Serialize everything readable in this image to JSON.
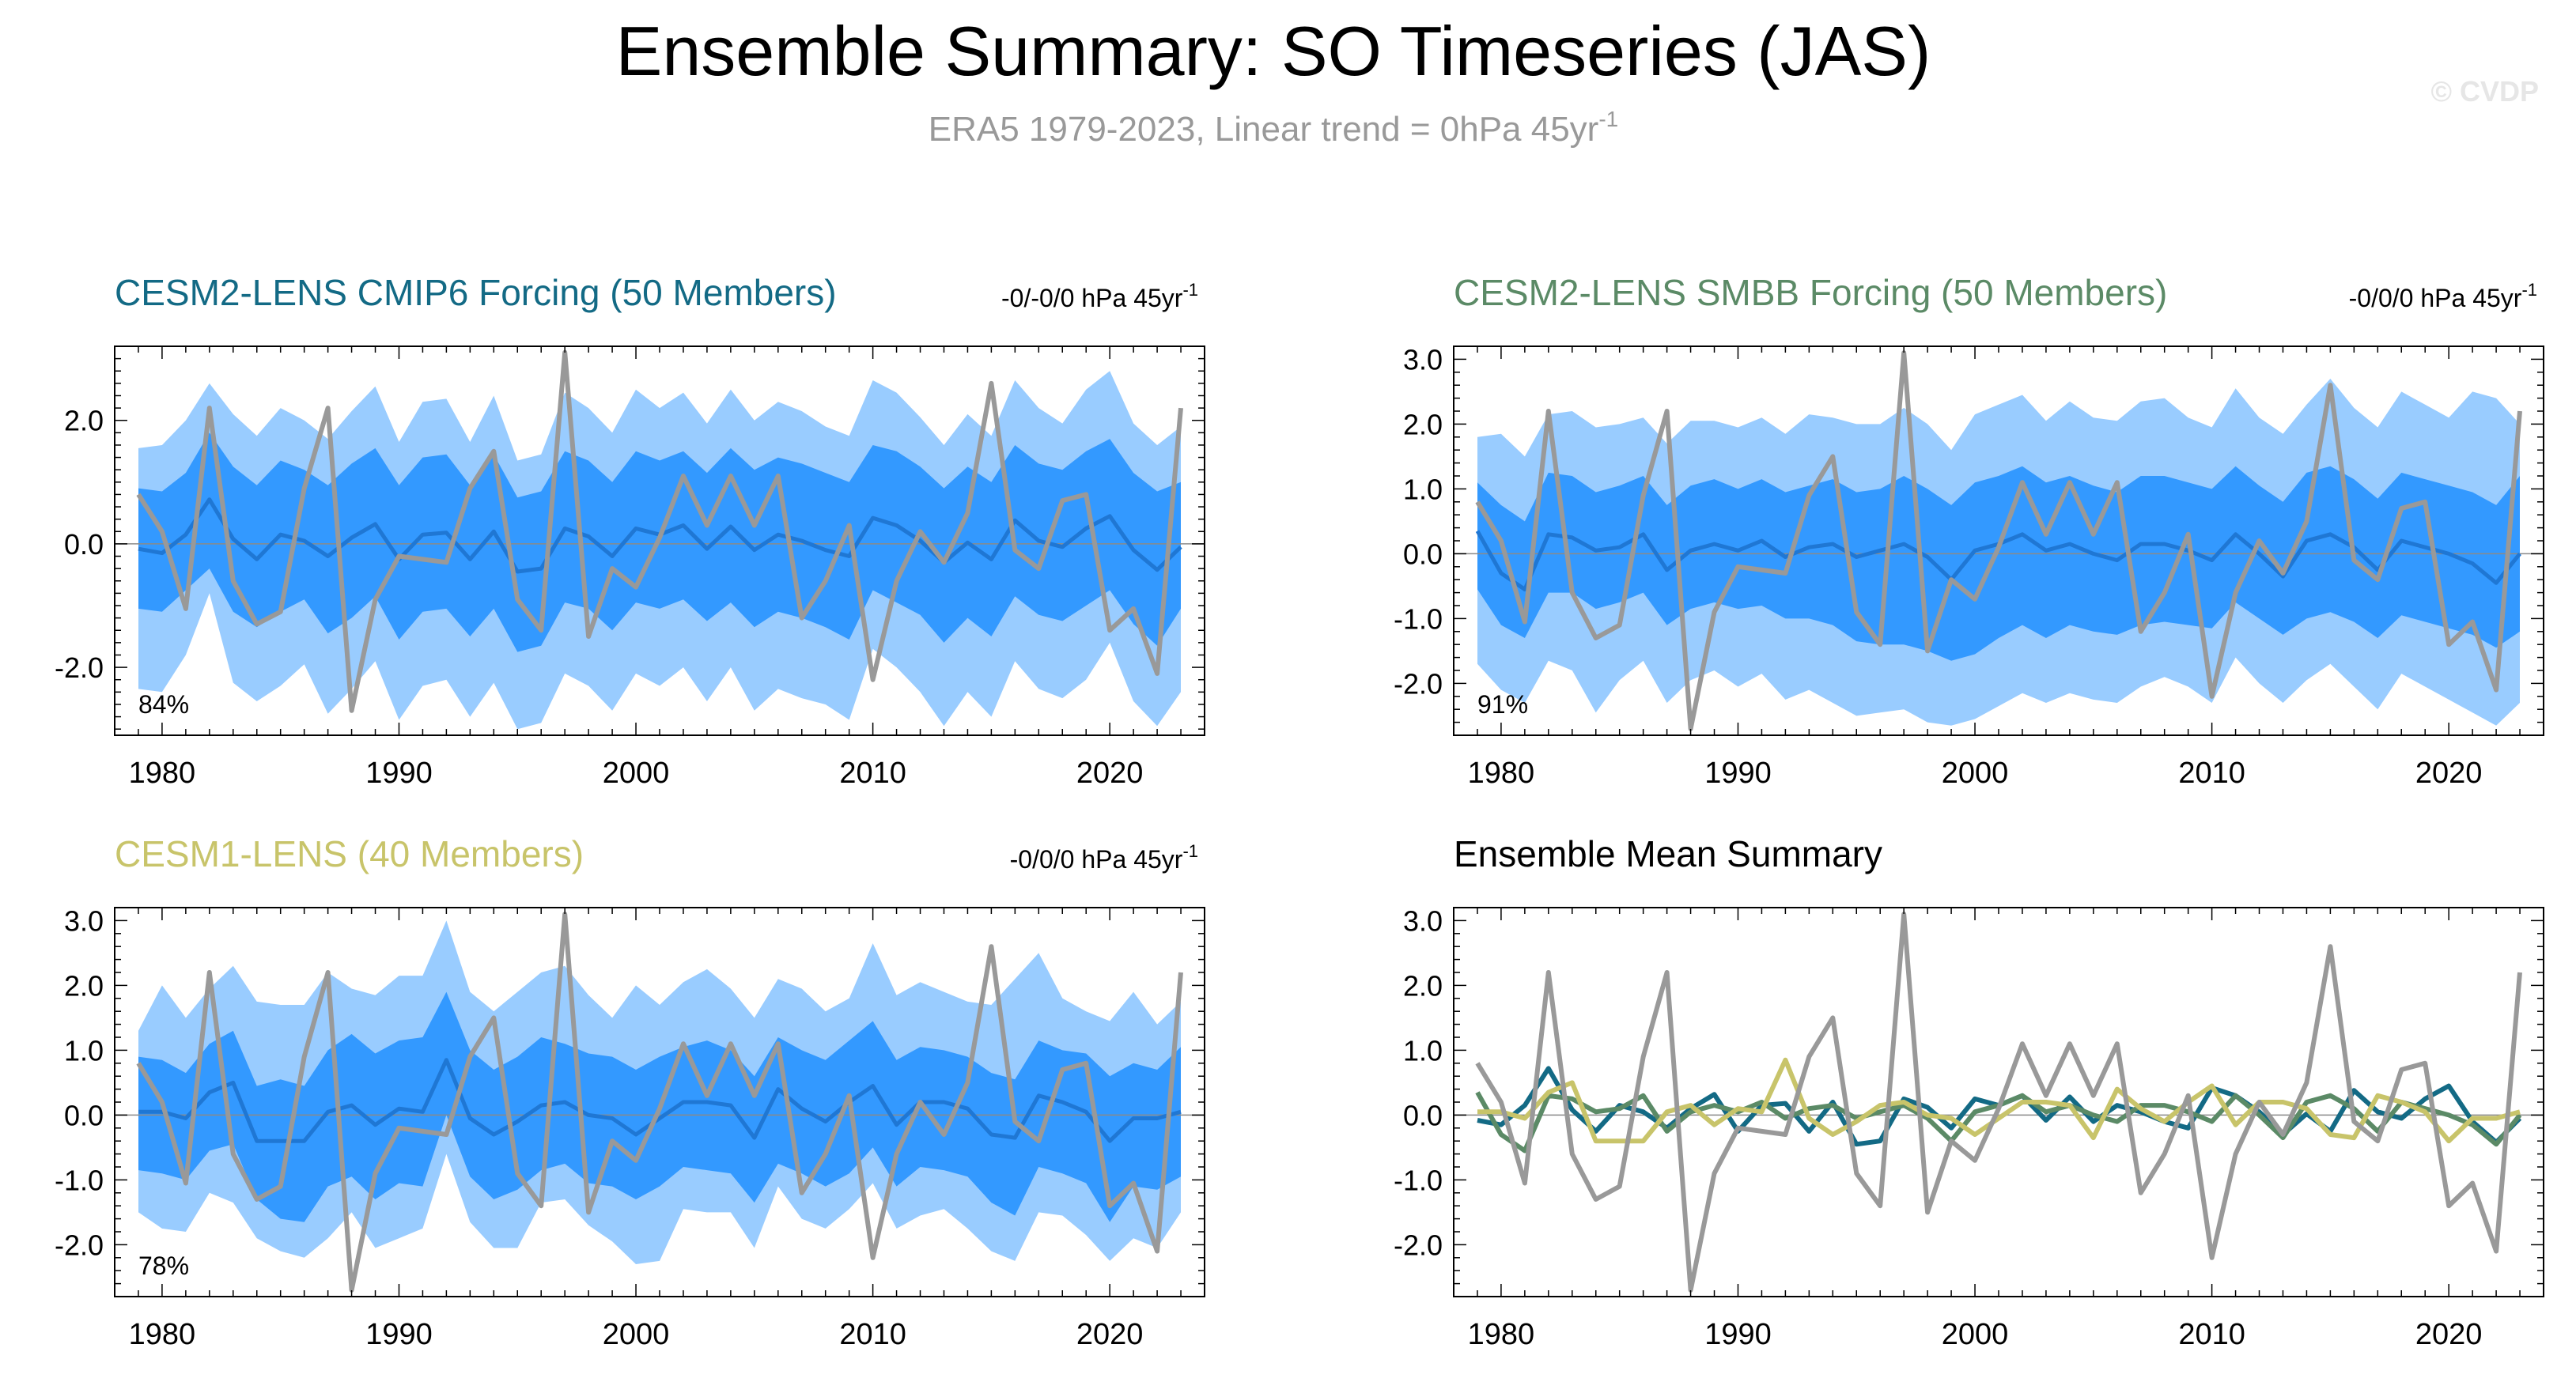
{
  "header": {
    "title": "Ensemble Summary: SO Timeseries (JAS)",
    "subtitle_main": "ERA5 1979-2023, Linear trend = 0hPa 45yr",
    "subtitle_sup": "-1",
    "watermark": "© CVDP"
  },
  "colors": {
    "outer_band": "#99ccff",
    "inner_band": "#3399ff",
    "ens_mean": "#1f77d4",
    "obs": "#999999",
    "cesm2_cmip6": "#136a85",
    "cesm2_smbb": "#5b8a66",
    "cesm1": "#c8c46a"
  },
  "chart_data": [
    {
      "type": "area",
      "id": "cesm2-cmip6",
      "title": "CESM2-LENS CMIP6 Forcing (50 Members)",
      "title_color": "#136a85",
      "trend_text": "-0/-0/0 hPa 45yr",
      "trend_sup": "-1",
      "percent": "84%",
      "xlim": [
        1978,
        2024
      ],
      "ylim": [
        -3.1,
        3.2
      ],
      "xticks": [
        1980,
        1990,
        2000,
        2010,
        2020
      ],
      "xtick_labels": [
        "1980",
        "1990",
        "2000",
        "2010",
        "2020"
      ],
      "yticks": [
        -2,
        0,
        2
      ],
      "ytick_labels": [
        "-2.0",
        "0.0",
        "2.0"
      ],
      "ens_mean": [
        -0.08,
        -0.15,
        0.15,
        0.72,
        0.08,
        -0.25,
        0.15,
        0.05,
        -0.2,
        0.1,
        0.32,
        -0.25,
        0.15,
        0.18,
        -0.25,
        0.2,
        -0.45,
        -0.4,
        0.25,
        0.12,
        -0.2,
        0.25,
        0.15,
        0.3,
        -0.08,
        0.28,
        -0.1,
        0.15,
        0.05,
        -0.1,
        -0.2,
        0.42,
        0.3,
        0.05,
        -0.3,
        0.02,
        -0.25,
        0.38,
        0.05,
        -0.05,
        0.25,
        0.45,
        -0.1,
        -0.42,
        -0.05
      ],
      "inner_low": [
        -1.05,
        -1.1,
        -0.75,
        -0.4,
        -1.1,
        -1.35,
        -1.1,
        -0.9,
        -1.45,
        -1.2,
        -0.85,
        -1.55,
        -1.1,
        -1.05,
        -1.5,
        -1.05,
        -1.75,
        -1.65,
        -0.95,
        -1.05,
        -1.4,
        -0.95,
        -1.05,
        -0.9,
        -1.25,
        -0.95,
        -1.35,
        -1.1,
        -1.2,
        -1.35,
        -1.55,
        -0.75,
        -0.95,
        -1.15,
        -1.6,
        -1.2,
        -1.5,
        -0.85,
        -1.15,
        -1.25,
        -1.0,
        -0.75,
        -1.3,
        -1.65,
        -1.05
      ],
      "inner_high": [
        0.9,
        0.85,
        1.15,
        1.8,
        1.25,
        0.95,
        1.35,
        1.2,
        0.95,
        1.3,
        1.55,
        0.95,
        1.4,
        1.45,
        0.95,
        1.45,
        0.75,
        0.85,
        1.5,
        1.35,
        1.0,
        1.5,
        1.35,
        1.5,
        1.15,
        1.55,
        1.2,
        1.4,
        1.3,
        1.15,
        1.0,
        1.6,
        1.5,
        1.25,
        0.9,
        1.25,
        1.0,
        1.6,
        1.3,
        1.2,
        1.5,
        1.7,
        1.15,
        0.85,
        1.0
      ],
      "outer_low": [
        -2.35,
        -2.4,
        -1.8,
        -0.8,
        -2.25,
        -2.55,
        -2.3,
        -1.95,
        -2.75,
        -2.35,
        -1.9,
        -2.85,
        -2.3,
        -2.2,
        -2.8,
        -2.25,
        -3.0,
        -2.9,
        -2.1,
        -2.3,
        -2.7,
        -2.1,
        -2.3,
        -2.0,
        -2.55,
        -2.0,
        -2.7,
        -2.35,
        -2.5,
        -2.6,
        -2.85,
        -1.7,
        -2.0,
        -2.4,
        -2.95,
        -2.4,
        -2.8,
        -1.9,
        -2.35,
        -2.5,
        -2.2,
        -1.6,
        -2.55,
        -2.95,
        -2.4
      ],
      "outer_high": [
        1.55,
        1.6,
        2.0,
        2.6,
        2.1,
        1.75,
        2.2,
        2.0,
        1.7,
        2.15,
        2.55,
        1.65,
        2.3,
        2.35,
        1.65,
        2.4,
        1.35,
        1.45,
        2.45,
        2.2,
        1.8,
        2.5,
        2.2,
        2.45,
        1.95,
        2.5,
        2.0,
        2.3,
        2.15,
        1.9,
        1.75,
        2.65,
        2.45,
        2.05,
        1.6,
        2.1,
        1.75,
        2.65,
        2.2,
        1.95,
        2.5,
        2.8,
        1.95,
        1.6,
        1.9
      ],
      "obs": [
        0.8,
        0.2,
        -1.05,
        2.2,
        -0.6,
        -1.3,
        -1.1,
        0.9,
        2.2,
        -2.7,
        -0.9,
        -0.2,
        -0.25,
        -0.3,
        0.9,
        1.5,
        -0.9,
        -1.4,
        3.1,
        -1.5,
        -0.4,
        -0.7,
        0.1,
        1.1,
        0.3,
        1.1,
        0.3,
        1.1,
        -1.2,
        -0.6,
        0.3,
        -2.2,
        -0.6,
        0.2,
        -0.3,
        0.5,
        2.6,
        -0.1,
        -0.4,
        0.7,
        0.8,
        -1.4,
        -1.05,
        -2.1,
        2.2
      ]
    },
    {
      "type": "area",
      "id": "cesm2-smbb",
      "title": "CESM2-LENS SMBB Forcing (50 Members)",
      "title_color": "#5b8a66",
      "trend_text": "-0/0/0 hPa 45yr",
      "trend_sup": "-1",
      "percent": "91%",
      "xlim": [
        1978,
        2024
      ],
      "ylim": [
        -2.8,
        3.2
      ],
      "xticks": [
        1980,
        1990,
        2000,
        2010,
        2020
      ],
      "xtick_labels": [
        "1980",
        "1990",
        "2000",
        "2010",
        "2020"
      ],
      "yticks": [
        -2,
        -1,
        0,
        1,
        2,
        3
      ],
      "ytick_labels": [
        "-2.0",
        "-1.0",
        "0.0",
        "1.0",
        "2.0",
        "3.0"
      ],
      "ens_mean": [
        0.35,
        -0.3,
        -0.55,
        0.3,
        0.25,
        0.05,
        0.1,
        0.3,
        -0.25,
        0.05,
        0.15,
        0.05,
        0.2,
        -0.05,
        0.1,
        0.15,
        -0.05,
        0.05,
        0.15,
        -0.05,
        -0.4,
        0.05,
        0.15,
        0.3,
        0.05,
        0.15,
        0.0,
        -0.1,
        0.15,
        0.15,
        0.05,
        -0.1,
        0.3,
        0.0,
        -0.35,
        0.2,
        0.3,
        0.1,
        -0.25,
        0.2,
        0.1,
        0.0,
        -0.15,
        -0.45,
        0.0
      ],
      "inner_low": [
        -0.55,
        -1.1,
        -1.3,
        -0.6,
        -0.6,
        -0.85,
        -0.75,
        -0.6,
        -1.1,
        -0.85,
        -0.75,
        -0.85,
        -0.8,
        -1.0,
        -1.0,
        -1.1,
        -1.35,
        -1.4,
        -1.4,
        -1.5,
        -1.65,
        -1.55,
        -1.3,
        -1.1,
        -1.3,
        -1.1,
        -1.2,
        -1.25,
        -1.1,
        -1.05,
        -1.1,
        -1.15,
        -0.75,
        -1.0,
        -1.25,
        -1.0,
        -0.9,
        -1.05,
        -1.3,
        -0.95,
        -1.05,
        -1.15,
        -1.25,
        -1.45,
        -1.2
      ],
      "inner_high": [
        1.1,
        0.75,
        0.5,
        1.25,
        1.2,
        0.95,
        1.05,
        1.2,
        0.75,
        1.05,
        1.15,
        1.0,
        1.15,
        0.95,
        1.05,
        1.15,
        0.95,
        1.0,
        1.2,
        1.0,
        0.75,
        1.1,
        1.2,
        1.35,
        1.1,
        1.2,
        1.05,
        0.95,
        1.2,
        1.2,
        1.1,
        1.0,
        1.35,
        1.05,
        0.8,
        1.25,
        1.35,
        1.15,
        0.85,
        1.25,
        1.15,
        1.05,
        0.95,
        0.75,
        1.2
      ],
      "outer_low": [
        -1.7,
        -2.1,
        -2.3,
        -1.65,
        -1.8,
        -2.45,
        -1.95,
        -1.65,
        -2.3,
        -1.95,
        -1.8,
        -2.05,
        -1.85,
        -2.25,
        -2.1,
        -2.3,
        -2.5,
        -2.45,
        -2.4,
        -2.6,
        -2.65,
        -2.55,
        -2.35,
        -2.15,
        -2.3,
        -2.15,
        -2.25,
        -2.3,
        -2.05,
        -1.9,
        -2.05,
        -2.3,
        -1.6,
        -2.0,
        -2.3,
        -1.95,
        -1.7,
        -2.05,
        -2.4,
        -1.85,
        -2.05,
        -2.25,
        -2.45,
        -2.65,
        -2.3
      ],
      "outer_high": [
        1.8,
        1.85,
        1.5,
        2.15,
        2.2,
        1.95,
        2.0,
        2.1,
        1.7,
        2.05,
        2.05,
        1.95,
        2.1,
        1.85,
        2.15,
        2.1,
        2.0,
        2.0,
        2.25,
        2.0,
        1.6,
        2.15,
        2.3,
        2.45,
        2.05,
        2.35,
        2.1,
        2.05,
        2.35,
        2.4,
        2.1,
        1.95,
        2.55,
        2.1,
        1.85,
        2.3,
        2.7,
        2.25,
        1.95,
        2.5,
        2.3,
        2.1,
        2.5,
        2.4,
        2.0
      ],
      "obs": [
        0.8,
        0.2,
        -1.05,
        2.2,
        -0.6,
        -1.3,
        -1.1,
        0.9,
        2.2,
        -2.7,
        -0.9,
        -0.2,
        -0.25,
        -0.3,
        0.9,
        1.5,
        -0.9,
        -1.4,
        3.1,
        -1.5,
        -0.4,
        -0.7,
        0.1,
        1.1,
        0.3,
        1.1,
        0.3,
        1.1,
        -1.2,
        -0.6,
        0.3,
        -2.2,
        -0.6,
        0.2,
        -0.3,
        0.5,
        2.6,
        -0.1,
        -0.4,
        0.7,
        0.8,
        -1.4,
        -1.05,
        -2.1,
        2.2
      ]
    },
    {
      "type": "area",
      "id": "cesm1",
      "title": "CESM1-LENS (40 Members)",
      "title_color": "#c8c46a",
      "trend_text": "-0/0/0 hPa 45yr",
      "trend_sup": "-1",
      "percent": "78%",
      "xlim": [
        1978,
        2024
      ],
      "ylim": [
        -2.8,
        3.2
      ],
      "xticks": [
        1980,
        1990,
        2000,
        2010,
        2020
      ],
      "xtick_labels": [
        "1980",
        "1990",
        "2000",
        "2010",
        "2020"
      ],
      "yticks": [
        -2,
        -1,
        0,
        1,
        2,
        3
      ],
      "ytick_labels": [
        "-2.0",
        "-1.0",
        "0.0",
        "1.0",
        "2.0",
        "3.0"
      ],
      "ens_mean": [
        0.05,
        0.05,
        -0.05,
        0.35,
        0.5,
        -0.4,
        -0.4,
        -0.4,
        0.05,
        0.15,
        -0.15,
        0.1,
        0.05,
        0.85,
        -0.05,
        -0.3,
        -0.1,
        0.15,
        0.2,
        0.0,
        -0.05,
        -0.3,
        -0.05,
        0.2,
        0.2,
        0.15,
        -0.35,
        0.4,
        0.1,
        -0.1,
        0.2,
        0.45,
        -0.15,
        0.2,
        0.2,
        0.1,
        -0.3,
        -0.35,
        0.3,
        0.2,
        0.05,
        -0.4,
        -0.05,
        -0.05,
        0.05
      ],
      "inner_low": [
        -0.85,
        -0.9,
        -1.0,
        -0.55,
        -0.45,
        -1.3,
        -1.6,
        -1.65,
        -1.1,
        -0.95,
        -1.3,
        -1.05,
        -1.1,
        0.0,
        -0.95,
        -1.3,
        -1.15,
        -0.85,
        -0.75,
        -1.05,
        -1.1,
        -1.3,
        -1.1,
        -0.8,
        -0.85,
        -0.9,
        -1.35,
        -0.75,
        -0.9,
        -1.1,
        -0.9,
        -0.5,
        -1.1,
        -0.8,
        -0.85,
        -0.95,
        -1.35,
        -1.55,
        -0.8,
        -0.9,
        -1.05,
        -1.65,
        -1.1,
        -1.15,
        -0.95
      ],
      "inner_high": [
        0.9,
        0.85,
        0.65,
        1.1,
        1.3,
        0.45,
        0.55,
        0.45,
        1.0,
        1.25,
        0.95,
        1.15,
        1.2,
        1.9,
        1.0,
        0.7,
        0.9,
        1.2,
        1.1,
        0.95,
        0.9,
        0.7,
        0.9,
        1.05,
        1.15,
        1.0,
        0.6,
        1.2,
        1.0,
        0.85,
        1.15,
        1.45,
        0.85,
        1.05,
        1.0,
        0.9,
        0.65,
        0.55,
        1.15,
        1.0,
        0.95,
        0.6,
        0.8,
        0.7,
        1.05
      ],
      "outer_low": [
        -1.5,
        -1.75,
        -1.8,
        -1.2,
        -1.35,
        -1.9,
        -2.1,
        -2.2,
        -1.9,
        -1.5,
        -2.05,
        -1.9,
        -1.75,
        -0.6,
        -1.65,
        -2.05,
        -2.05,
        -1.35,
        -1.3,
        -1.7,
        -1.95,
        -2.3,
        -2.25,
        -1.45,
        -1.5,
        -1.5,
        -2.05,
        -1.1,
        -1.6,
        -1.75,
        -1.45,
        -1.05,
        -1.75,
        -1.55,
        -1.45,
        -1.75,
        -2.1,
        -2.25,
        -1.5,
        -1.55,
        -1.85,
        -2.25,
        -1.9,
        -2.05,
        -1.5
      ],
      "outer_high": [
        1.3,
        2.0,
        1.5,
        1.95,
        2.3,
        1.75,
        1.7,
        1.7,
        2.2,
        1.95,
        1.85,
        2.15,
        2.15,
        3.0,
        1.9,
        1.6,
        1.9,
        2.2,
        2.3,
        1.85,
        1.5,
        2.0,
        1.7,
        2.05,
        2.25,
        1.95,
        1.5,
        2.1,
        1.95,
        1.6,
        1.8,
        2.65,
        1.85,
        2.05,
        1.9,
        1.75,
        1.7,
        2.1,
        2.5,
        1.8,
        1.6,
        1.45,
        1.9,
        1.4,
        1.75
      ],
      "obs": [
        0.8,
        0.2,
        -1.05,
        2.2,
        -0.6,
        -1.3,
        -1.1,
        0.9,
        2.2,
        -2.7,
        -0.9,
        -0.2,
        -0.25,
        -0.3,
        0.9,
        1.5,
        -0.9,
        -1.4,
        3.1,
        -1.5,
        -0.4,
        -0.7,
        0.1,
        1.1,
        0.3,
        1.1,
        0.3,
        1.1,
        -1.2,
        -0.6,
        0.3,
        -2.2,
        -0.6,
        0.2,
        -0.3,
        0.5,
        2.6,
        -0.1,
        -0.4,
        0.7,
        0.8,
        -1.4,
        -1.05,
        -2.1,
        2.2
      ]
    },
    {
      "type": "line",
      "id": "ensemble-mean-summary",
      "title": "Ensemble Mean Summary",
      "title_color": "#000000",
      "xlim": [
        1978,
        2024
      ],
      "ylim": [
        -2.8,
        3.2
      ],
      "xticks": [
        1980,
        1990,
        2000,
        2010,
        2020
      ],
      "xtick_labels": [
        "1980",
        "1990",
        "2000",
        "2010",
        "2020"
      ],
      "yticks": [
        -2,
        -1,
        0,
        1,
        2,
        3
      ],
      "ytick_labels": [
        "-2.0",
        "-1.0",
        "0.0",
        "1.0",
        "2.0",
        "3.0"
      ],
      "series": [
        {
          "name": "CESM2-LENS CMIP6 Forcing",
          "color": "#136a85",
          "values": [
            -0.08,
            -0.15,
            0.15,
            0.72,
            0.08,
            -0.25,
            0.15,
            0.05,
            -0.2,
            0.1,
            0.32,
            -0.25,
            0.15,
            0.18,
            -0.25,
            0.2,
            -0.45,
            -0.4,
            0.25,
            0.12,
            -0.2,
            0.25,
            0.15,
            0.3,
            -0.08,
            0.28,
            -0.1,
            0.15,
            0.05,
            -0.1,
            -0.2,
            0.42,
            0.3,
            0.05,
            -0.3,
            0.02,
            -0.25,
            0.38,
            0.05,
            -0.05,
            0.25,
            0.45,
            -0.1,
            -0.42,
            -0.05
          ]
        },
        {
          "name": "CESM2-LENS SMBB Forcing",
          "color": "#5b8a66",
          "values": [
            0.35,
            -0.3,
            -0.55,
            0.3,
            0.25,
            0.05,
            0.1,
            0.3,
            -0.25,
            0.05,
            0.15,
            0.05,
            0.2,
            -0.05,
            0.1,
            0.15,
            -0.05,
            0.05,
            0.15,
            -0.05,
            -0.4,
            0.05,
            0.15,
            0.3,
            0.05,
            0.15,
            0.0,
            -0.1,
            0.15,
            0.15,
            0.05,
            -0.1,
            0.3,
            0.0,
            -0.35,
            0.2,
            0.3,
            0.1,
            -0.25,
            0.2,
            0.1,
            0.0,
            -0.15,
            -0.45,
            0.0
          ]
        },
        {
          "name": "CESM1-LENS",
          "color": "#c8c46a",
          "values": [
            0.05,
            0.05,
            -0.05,
            0.35,
            0.5,
            -0.4,
            -0.4,
            -0.4,
            0.05,
            0.15,
            -0.15,
            0.1,
            0.05,
            0.85,
            -0.05,
            -0.3,
            -0.1,
            0.15,
            0.2,
            0.0,
            -0.05,
            -0.3,
            -0.05,
            0.2,
            0.2,
            0.15,
            -0.35,
            0.4,
            0.1,
            -0.1,
            0.2,
            0.45,
            -0.15,
            0.2,
            0.2,
            0.1,
            -0.3,
            -0.35,
            0.3,
            0.2,
            0.05,
            -0.4,
            -0.05,
            -0.05,
            0.05
          ]
        },
        {
          "name": "ERA5",
          "color": "#999999",
          "values": [
            0.8,
            0.2,
            -1.05,
            2.2,
            -0.6,
            -1.3,
            -1.1,
            0.9,
            2.2,
            -2.7,
            -0.9,
            -0.2,
            -0.25,
            -0.3,
            0.9,
            1.5,
            -0.9,
            -1.4,
            3.1,
            -1.5,
            -0.4,
            -0.7,
            0.1,
            1.1,
            0.3,
            1.1,
            0.3,
            1.1,
            -1.2,
            -0.6,
            0.3,
            -2.2,
            -0.6,
            0.2,
            -0.3,
            0.5,
            2.6,
            -0.1,
            -0.4,
            0.7,
            0.8,
            -1.4,
            -1.05,
            -2.1,
            2.2
          ]
        }
      ]
    }
  ]
}
